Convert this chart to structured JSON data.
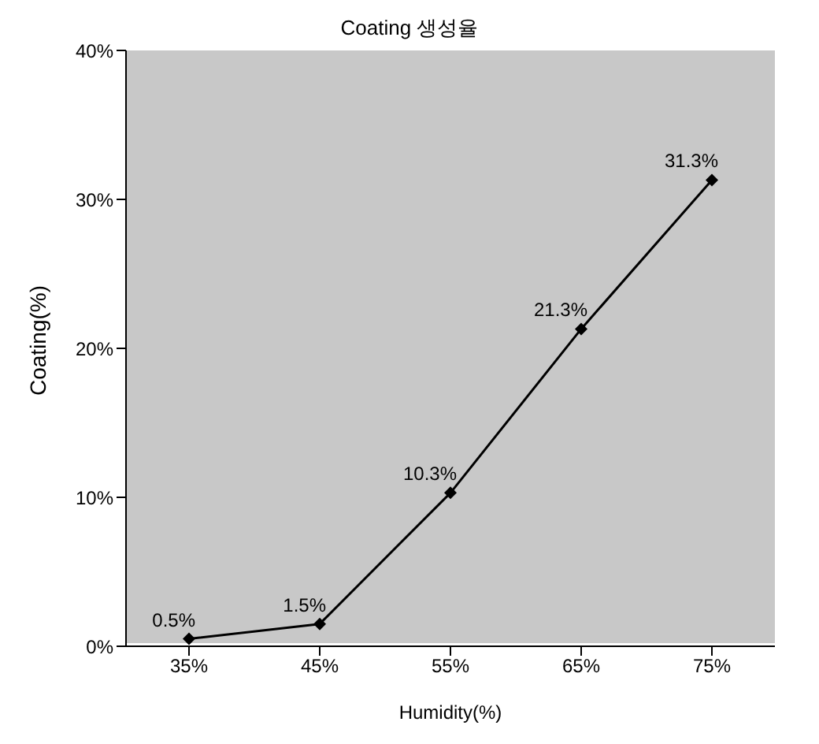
{
  "chart_data": {
    "type": "line",
    "title": "Coating 생성율",
    "xlabel": "Humidity(%)",
    "ylabel": "Coating(%)",
    "categories": [
      "35%",
      "45%",
      "55%",
      "65%",
      "75%"
    ],
    "series": [
      {
        "color": "#000000",
        "values": [
          0.5,
          1.5,
          10.3,
          21.3,
          31.3
        ]
      }
    ],
    "value_labels": [
      "0.5%",
      "1.5%",
      "10.3%",
      "21.3%",
      "31.3%"
    ],
    "ylim": [
      0,
      40
    ],
    "yticks": [
      {
        "value": 0,
        "label": "0%"
      },
      {
        "value": 10,
        "label": "10%"
      },
      {
        "value": 20,
        "label": "20%"
      },
      {
        "value": 30,
        "label": "30%"
      },
      {
        "value": 40,
        "label": "40%"
      }
    ],
    "marker": "diamond",
    "line_style": "solid",
    "grid": false,
    "legend": false
  }
}
